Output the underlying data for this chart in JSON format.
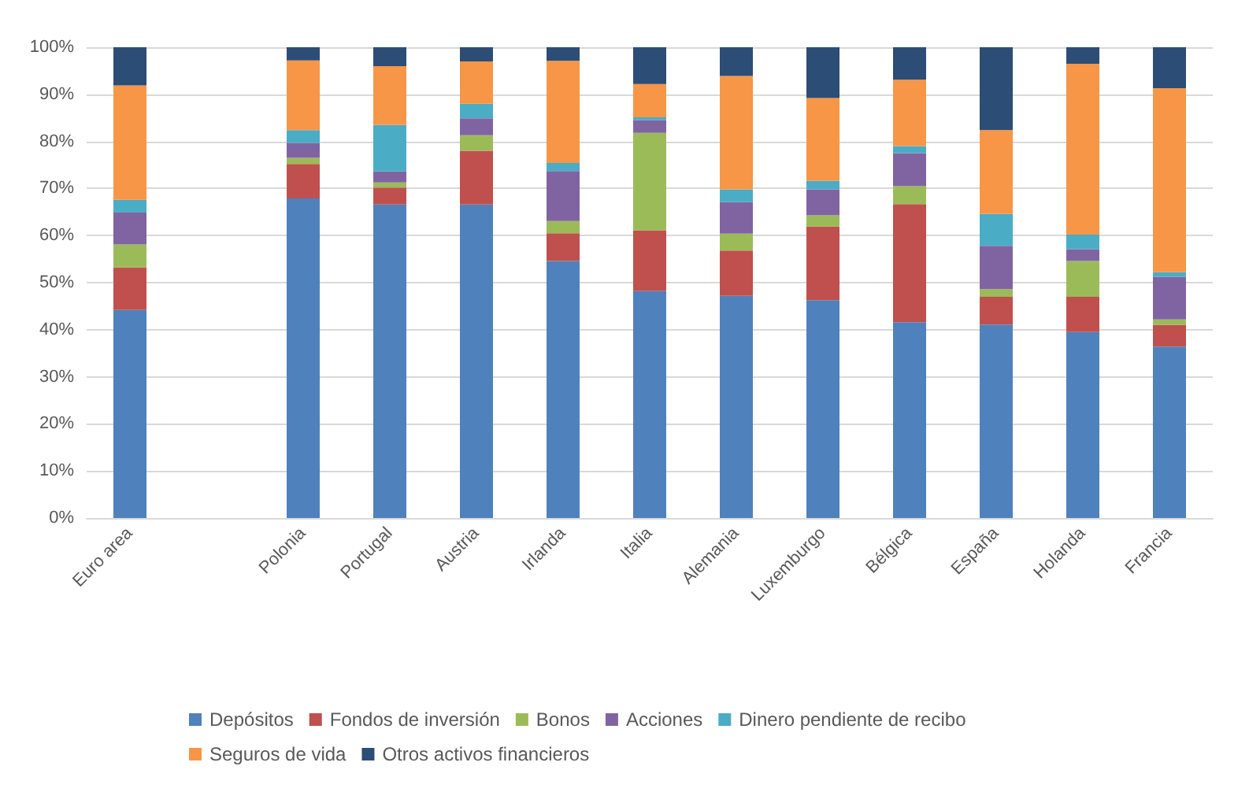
{
  "chart_data": {
    "type": "bar",
    "stacked": true,
    "categories": [
      "Euro area",
      null,
      "Polonia",
      "Portugal",
      "Austria",
      "Irlanda",
      "Italia",
      "Alemania",
      "Luxemburgo",
      "Bélgica",
      "España",
      "Holanda",
      "Francia"
    ],
    "series": [
      {
        "name": "Depósitos",
        "color": "#4f81bd",
        "values": [
          44.2,
          null,
          67.9,
          66.6,
          66.6,
          54.6,
          48.2,
          47.2,
          46.3,
          41.6,
          41.1,
          39.5,
          36.4
        ]
      },
      {
        "name": "Fondos de inversión",
        "color": "#c0504d",
        "values": [
          9.0,
          null,
          7.3,
          3.6,
          11.4,
          5.9,
          12.9,
          9.6,
          15.6,
          25.1,
          5.9,
          7.5,
          4.6
        ]
      },
      {
        "name": "Bonos",
        "color": "#9bbb59",
        "values": [
          4.9,
          null,
          1.3,
          1.1,
          3.3,
          2.6,
          20.7,
          3.6,
          2.4,
          3.8,
          1.6,
          7.6,
          1.2
        ]
      },
      {
        "name": "Acciones",
        "color": "#8064a2",
        "values": [
          6.8,
          null,
          3.2,
          2.3,
          3.6,
          10.6,
          2.7,
          6.7,
          5.5,
          7.0,
          9.2,
          2.5,
          9.0
        ]
      },
      {
        "name": "Dinero pendiente de recibo",
        "color": "#4bacc6",
        "values": [
          2.7,
          null,
          2.7,
          9.9,
          3.1,
          1.7,
          0.6,
          2.7,
          1.8,
          1.5,
          6.8,
          3.1,
          1.0
        ]
      },
      {
        "name": "Seguros de vida",
        "color": "#f79646",
        "values": [
          24.3,
          null,
          14.8,
          12.5,
          9.0,
          21.7,
          7.1,
          24.1,
          17.6,
          14.1,
          17.8,
          36.3,
          39.1
        ]
      },
      {
        "name": "Otros activos financieros",
        "color": "#2c4d75",
        "values": [
          8.1,
          null,
          2.8,
          4.0,
          3.0,
          2.9,
          7.8,
          6.1,
          10.8,
          6.9,
          17.6,
          3.5,
          8.7
        ]
      }
    ],
    "ylim": [
      0,
      100
    ],
    "yticks": [
      {
        "value": 0,
        "label": "0%"
      },
      {
        "value": 10,
        "label": "10%"
      },
      {
        "value": 20,
        "label": "20%"
      },
      {
        "value": 30,
        "label": "30%"
      },
      {
        "value": 40,
        "label": "40%"
      },
      {
        "value": 50,
        "label": "50%"
      },
      {
        "value": 60,
        "label": "60%"
      },
      {
        "value": 70,
        "label": "70%"
      },
      {
        "value": 80,
        "label": "80%"
      },
      {
        "value": 90,
        "label": "90%"
      },
      {
        "value": 100,
        "label": "100%"
      }
    ],
    "grid": "y",
    "legend": "bottom"
  }
}
